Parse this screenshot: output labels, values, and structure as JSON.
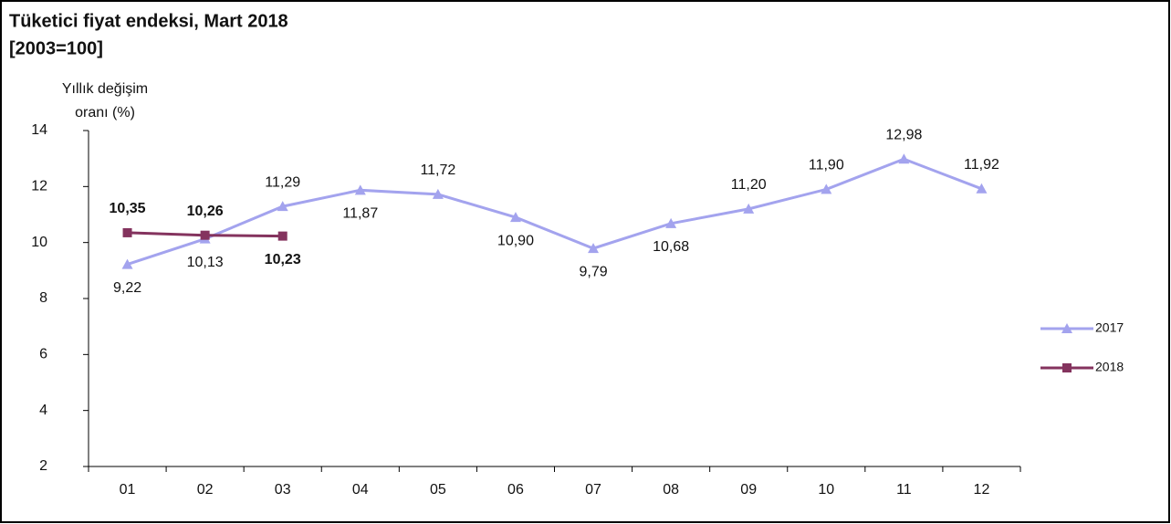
{
  "chart_data": {
    "type": "line",
    "title": "Tüketici fiyat endeksi, Mart 2018",
    "subtitle": "[2003=100]",
    "y_label": [
      "Yıllık değişim",
      "oranı (%)"
    ],
    "categories": [
      "01",
      "02",
      "03",
      "04",
      "05",
      "06",
      "07",
      "08",
      "09",
      "10",
      "11",
      "12"
    ],
    "series": [
      {
        "name": "2017",
        "color": "#a3a3ee",
        "marker": "triangle",
        "values": [
          9.22,
          10.13,
          11.29,
          11.87,
          11.72,
          10.9,
          9.79,
          10.68,
          11.2,
          11.9,
          12.98,
          11.92
        ],
        "value_labels": [
          "9,22",
          "10,13",
          "11,29",
          "11,87",
          "11,72",
          "10,90",
          "9,79",
          "10,68",
          "11,20",
          "11,90",
          "12,98",
          "11,92"
        ]
      },
      {
        "name": "2018",
        "color": "#84335e",
        "marker": "square",
        "values": [
          10.35,
          10.26,
          10.23,
          null,
          null,
          null,
          null,
          null,
          null,
          null,
          null,
          null
        ],
        "value_labels": [
          "10,35",
          "10,26",
          "10,23",
          null,
          null,
          null,
          null,
          null,
          null,
          null,
          null,
          null
        ]
      }
    ],
    "ylim": [
      2,
      14
    ],
    "yticks": [
      2,
      4,
      6,
      8,
      10,
      12,
      14
    ],
    "grid": false,
    "legend": "right"
  }
}
